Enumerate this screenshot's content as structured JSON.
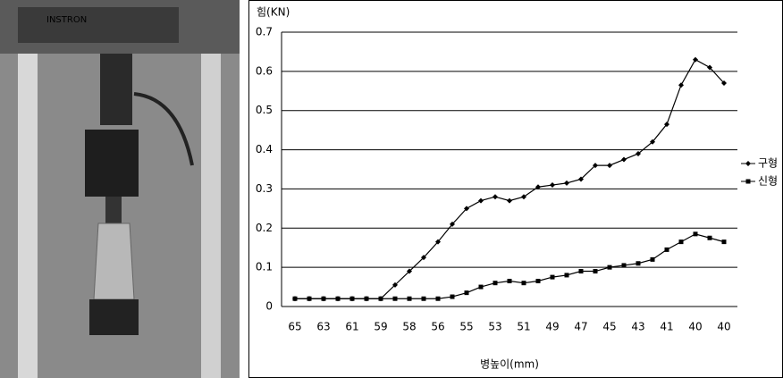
{
  "photo": {
    "label": "INSTRON"
  },
  "chart_data": {
    "type": "line",
    "y_label": "힘(KN)",
    "x_label": "병높이(mm)",
    "categories": [
      "65",
      null,
      "63",
      null,
      "61",
      null,
      "59",
      null,
      "58",
      null,
      "56",
      null,
      "55",
      null,
      "53",
      null,
      "51",
      null,
      "49",
      null,
      "47",
      null,
      "45",
      null,
      "43",
      null,
      "41",
      null,
      "40",
      null,
      "40"
    ],
    "series": [
      {
        "name": "구형",
        "color": "#000000",
        "marker": "diamond",
        "values": [
          0.02,
          0.02,
          0.02,
          0.02,
          0.02,
          0.02,
          0.02,
          0.055,
          0.09,
          0.125,
          0.165,
          0.21,
          0.25,
          0.27,
          0.28,
          0.27,
          0.28,
          0.305,
          0.31,
          0.315,
          0.325,
          0.36,
          0.36,
          0.375,
          0.39,
          0.42,
          0.465,
          0.565,
          0.63,
          0.61,
          0.57
        ]
      },
      {
        "name": "신형",
        "color": "#000000",
        "marker": "square",
        "values": [
          0.02,
          0.02,
          0.02,
          0.02,
          0.02,
          0.02,
          0.02,
          0.02,
          0.02,
          0.02,
          0.02,
          0.025,
          0.035,
          0.05,
          0.06,
          0.065,
          0.06,
          0.065,
          0.075,
          0.08,
          0.09,
          0.09,
          0.1,
          0.105,
          0.11,
          0.12,
          0.145,
          0.165,
          0.185,
          0.175,
          0.165
        ]
      }
    ],
    "ylim": [
      0,
      0.7
    ],
    "yticks": [
      0,
      0.1,
      0.2,
      0.3,
      0.4,
      0.5,
      0.6,
      0.7
    ],
    "grid": true,
    "legend": "right"
  }
}
